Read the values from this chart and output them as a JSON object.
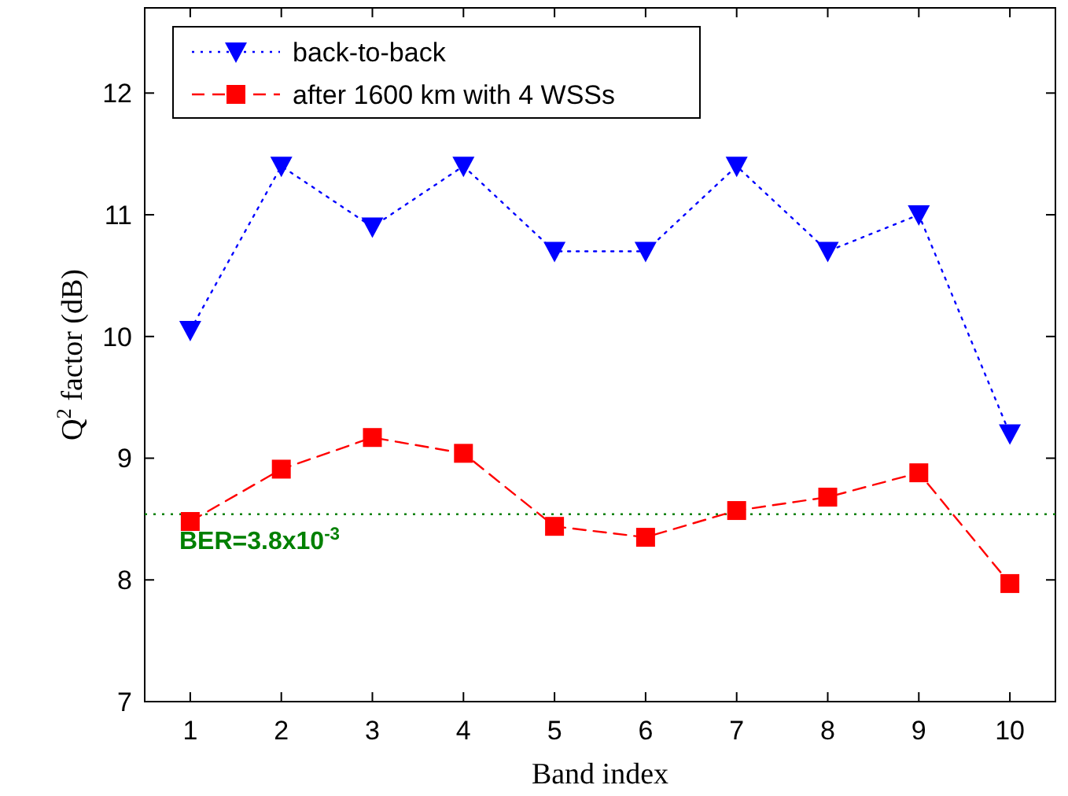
{
  "chart_data": {
    "type": "line",
    "xlabel": "Band index",
    "ylabel": "Q$^{2}$ factor (dB)",
    "x": [
      1,
      2,
      3,
      4,
      5,
      6,
      7,
      8,
      9,
      10
    ],
    "xlim": [
      0.5,
      10.5
    ],
    "xticks": [
      1,
      2,
      3,
      4,
      5,
      6,
      7,
      8,
      9,
      10
    ],
    "ylim": [
      7,
      12.7
    ],
    "yticks": [
      7,
      8,
      9,
      10,
      11,
      12
    ],
    "grid": false,
    "legend": "top left",
    "series": [
      {
        "name": "back-to-back",
        "color": "#0000ff",
        "marker": "triangle",
        "line_style": "dotted",
        "values": [
          10.05,
          11.4,
          10.9,
          11.4,
          10.7,
          10.7,
          11.4,
          10.7,
          11.0,
          9.2
        ]
      },
      {
        "name": "after 1600 km with 4 WSSs",
        "color": "#ff0000",
        "marker": "square",
        "line_style": "dashed",
        "values": [
          8.48,
          8.91,
          9.17,
          9.04,
          8.44,
          8.35,
          8.57,
          8.68,
          8.88,
          7.97
        ]
      }
    ],
    "ref_lines": [
      {
        "axis": "y",
        "value": 8.54,
        "color": "#008000",
        "line_style": "dotted"
      }
    ],
    "annotations": [
      "BER=3.8x10$^{-3}$"
    ]
  }
}
